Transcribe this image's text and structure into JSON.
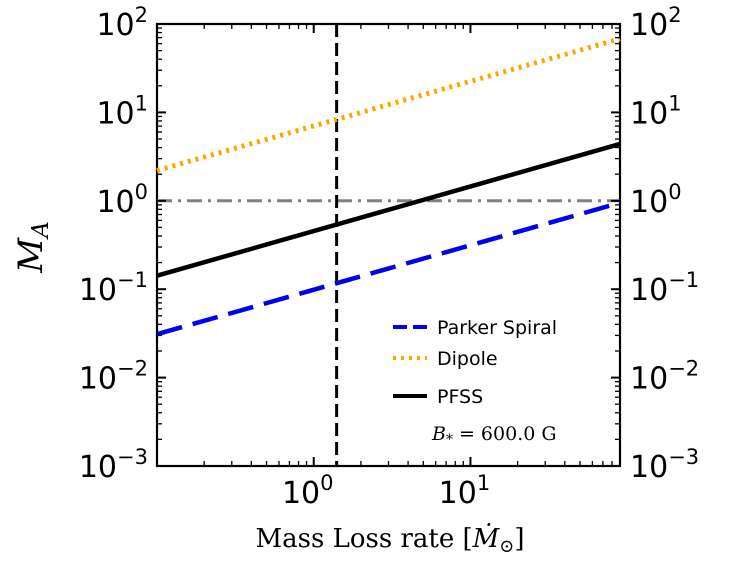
{
  "chart_data": {
    "type": "line",
    "title": "",
    "xlabel": "Mass Loss rate [Ṁ☉]",
    "ylabel": "M_A",
    "xscale": "log",
    "yscale": "log",
    "xlim": [
      0.1,
      90
    ],
    "ylim": [
      0.001,
      100
    ],
    "x_tick_values": [
      1,
      10
    ],
    "x_tick_labels": [
      "10^0",
      "10^1"
    ],
    "y_tick_values": [
      0.001,
      0.01,
      0.1,
      1,
      10,
      100
    ],
    "y_tick_labels": [
      "10^-3",
      "10^-2",
      "10^-1",
      "10^0",
      "10^1",
      "10^2"
    ],
    "series": [
      {
        "name": "Parker Spiral",
        "color": "#0000ee",
        "style": "dashed",
        "x": [
          0.1,
          90
        ],
        "y": [
          0.031,
          0.95
        ]
      },
      {
        "name": "Dipole",
        "color": "#ffa500",
        "style": "dotted",
        "x": [
          0.1,
          90
        ],
        "y": [
          2.2,
          68
        ]
      },
      {
        "name": "PFSS",
        "color": "#000000",
        "style": "solid",
        "x": [
          0.1,
          90
        ],
        "y": [
          0.142,
          4.4
        ]
      }
    ],
    "reference_lines": [
      {
        "orientation": "horizontal",
        "value": 1.0,
        "color": "#808080",
        "style": "dashdot"
      },
      {
        "orientation": "vertical",
        "value": 1.4,
        "color": "#000000",
        "style": "dashed"
      }
    ],
    "legend": {
      "position": "lower-right",
      "entries": [
        "Parker Spiral",
        "Dipole",
        "PFSS"
      ],
      "note_symbol": "B",
      "note_subscript": "*",
      "note_text": "= 600.0 G"
    }
  }
}
